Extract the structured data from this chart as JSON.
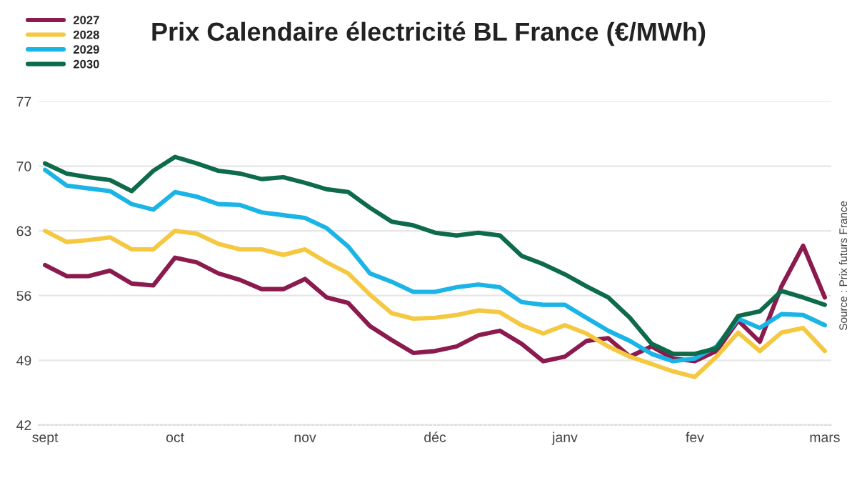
{
  "chart_data": {
    "type": "line",
    "title": "Prix Calendaire électricité BL France (€/MWh)",
    "categories": [
      "sept",
      null,
      null,
      null,
      null,
      null,
      "oct",
      null,
      null,
      null,
      null,
      null,
      "nov",
      null,
      null,
      null,
      null,
      null,
      "déc",
      null,
      null,
      null,
      null,
      null,
      "janv",
      null,
      null,
      null,
      null,
      null,
      "fev",
      null,
      null,
      null,
      null,
      null,
      "mars"
    ],
    "series": [
      {
        "name": "2027",
        "color": "#8b1a4f",
        "values": [
          59.3,
          58.1,
          58.1,
          58.7,
          57.3,
          57.1,
          60.1,
          59.6,
          58.4,
          57.7,
          56.7,
          56.7,
          57.8,
          55.8,
          55.2,
          52.7,
          51.2,
          49.8,
          50,
          50.5,
          51.7,
          52.2,
          50.8,
          48.9,
          49.4,
          51.1,
          51.4,
          49.4,
          50.5,
          49.2,
          48.9,
          50,
          53.3,
          51,
          57,
          61.4,
          55.8
        ]
      },
      {
        "name": "2028",
        "color": "#f5c842",
        "values": [
          63,
          61.8,
          62,
          62.3,
          61,
          61,
          63,
          62.7,
          61.6,
          61,
          61,
          60.4,
          61,
          59.6,
          58.4,
          56.1,
          54.1,
          53.5,
          53.6,
          53.9,
          54.4,
          54.2,
          52.8,
          51.9,
          52.8,
          51.9,
          50.5,
          49.4,
          48.6,
          47.8,
          47.2,
          49.4,
          52,
          50,
          52,
          52.5,
          50
        ]
      },
      {
        "name": "2029",
        "color": "#1ab4e6",
        "values": [
          69.6,
          67.9,
          67.6,
          67.3,
          65.9,
          65.3,
          67.2,
          66.7,
          65.9,
          65.8,
          65,
          64.7,
          64.4,
          63.3,
          61.3,
          58.4,
          57.5,
          56.4,
          56.4,
          56.9,
          57.2,
          56.9,
          55.3,
          55,
          55,
          53.6,
          52.2,
          51.1,
          49.7,
          48.9,
          49.2,
          50.5,
          53.5,
          52.5,
          54,
          53.9,
          52.8
        ]
      },
      {
        "name": "2030",
        "color": "#0d6b4a",
        "values": [
          70.3,
          69.2,
          68.8,
          68.5,
          67.3,
          69.5,
          71,
          70.3,
          69.5,
          69.2,
          68.6,
          68.8,
          68.2,
          67.5,
          67.2,
          65.5,
          64,
          63.6,
          62.8,
          62.5,
          62.8,
          62.5,
          60.3,
          59.4,
          58.3,
          57,
          55.8,
          53.6,
          50.8,
          49.7,
          49.7,
          50.3,
          53.8,
          54.3,
          56.5,
          55.8,
          55
        ]
      }
    ],
    "ylim": [
      42,
      77
    ],
    "yticks": [
      42,
      49,
      56,
      63,
      70,
      77
    ],
    "grid": "y",
    "legend": "top left",
    "marker": "none",
    "line_style": "solid",
    "annotations": [
      "Source : Prix futurs France"
    ]
  }
}
